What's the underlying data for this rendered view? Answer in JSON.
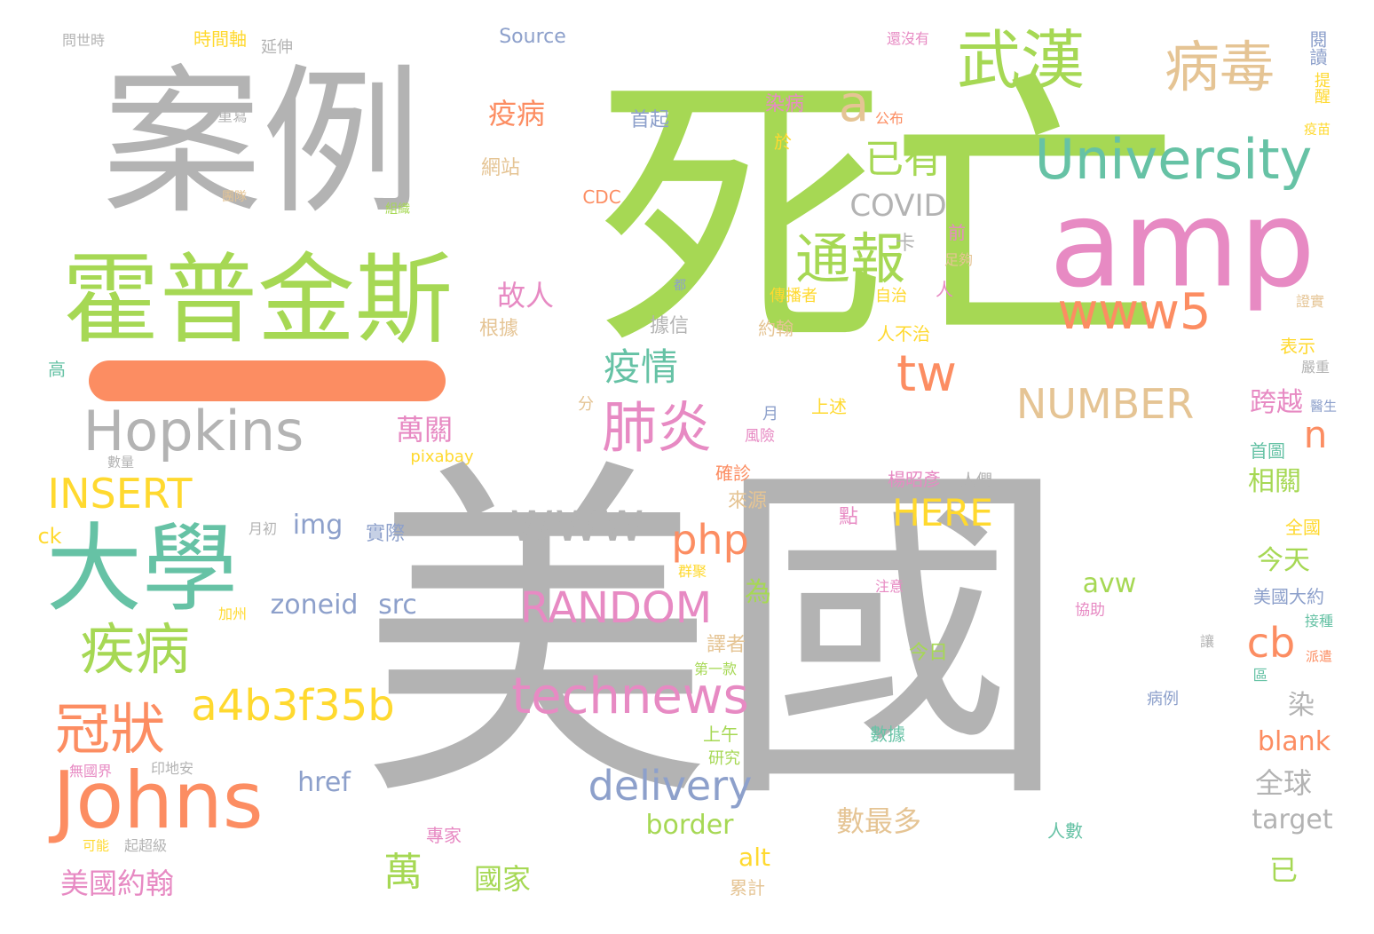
{
  "colors": {
    "gray": "#b3b3b3",
    "green": "#a6d854",
    "orange": "#fc8d62",
    "pink": "#e78ac3",
    "teal": "#66c2a5",
    "blue": "#8da0cb",
    "yellow": "#ffd92f",
    "tan": "#e5c494"
  },
  "bars": [
    {
      "name": "dash-bar",
      "color": "orange"
    }
  ],
  "words": [
    {
      "text": "美國",
      "color": "gray"
    },
    {
      "text": "死亡",
      "color": "green"
    },
    {
      "text": "案例",
      "color": "gray"
    },
    {
      "text": "amp",
      "color": "pink"
    },
    {
      "text": "霍普金斯",
      "color": "green"
    },
    {
      "text": "大學",
      "color": "teal"
    },
    {
      "text": "Johns",
      "color": "orange"
    },
    {
      "text": "University",
      "color": "teal"
    },
    {
      "text": "武漢",
      "color": "green"
    },
    {
      "text": "病毒",
      "color": "tan"
    },
    {
      "text": "Hopkins",
      "color": "gray"
    },
    {
      "text": "www5",
      "color": "orange"
    },
    {
      "text": "technews",
      "color": "pink"
    },
    {
      "text": "www",
      "color": "gray"
    },
    {
      "text": "通報",
      "color": "green"
    },
    {
      "text": "疾病",
      "color": "green"
    },
    {
      "text": "冠狀",
      "color": "orange"
    },
    {
      "text": "a4b3f35b",
      "color": "yellow"
    },
    {
      "text": "肺炎",
      "color": "pink"
    },
    {
      "text": "delivery",
      "color": "blue"
    },
    {
      "text": "RANDOM",
      "color": "pink"
    },
    {
      "text": "INSERT",
      "color": "yellow"
    },
    {
      "text": "NUMBER",
      "color": "tan"
    },
    {
      "text": "php",
      "color": "orange"
    },
    {
      "text": "HERE",
      "color": "yellow"
    },
    {
      "text": "已有",
      "color": "green"
    },
    {
      "text": "tw",
      "color": "orange"
    },
    {
      "text": "疫情",
      "color": "teal"
    },
    {
      "text": "a",
      "color": "tan"
    },
    {
      "text": "n",
      "color": "orange"
    },
    {
      "text": "cb",
      "color": "orange"
    },
    {
      "text": "COVID",
      "color": "gray"
    },
    {
      "text": "萬",
      "color": "green"
    },
    {
      "text": "數最多",
      "color": "tan"
    },
    {
      "text": "故人",
      "color": "pink"
    },
    {
      "text": "疫病",
      "color": "orange"
    },
    {
      "text": "萬關",
      "color": "pink"
    },
    {
      "text": "全球",
      "color": "gray"
    },
    {
      "text": "美國約翰",
      "color": "pink"
    },
    {
      "text": "國家",
      "color": "green"
    },
    {
      "text": "zoneid",
      "color": "blue"
    },
    {
      "text": "src",
      "color": "blue"
    },
    {
      "text": "border",
      "color": "green"
    },
    {
      "text": "target",
      "color": "gray"
    },
    {
      "text": "blank",
      "color": "orange"
    },
    {
      "text": "跨越",
      "color": "pink"
    },
    {
      "text": "相關",
      "color": "green"
    },
    {
      "text": "今天",
      "color": "green"
    },
    {
      "text": "avw",
      "color": "green"
    },
    {
      "text": "img",
      "color": "blue"
    },
    {
      "text": "href",
      "color": "blue"
    },
    {
      "text": "alt",
      "color": "yellow"
    },
    {
      "text": "為",
      "color": "green"
    },
    {
      "text": "染",
      "color": "gray"
    },
    {
      "text": "已",
      "color": "green"
    },
    {
      "text": "ck",
      "color": "yellow"
    },
    {
      "text": "Source",
      "color": "blue"
    },
    {
      "text": "時間軸",
      "color": "yellow"
    },
    {
      "text": "問世時",
      "color": "gray"
    },
    {
      "text": "延伸",
      "color": "gray"
    },
    {
      "text": "重寫",
      "color": "gray"
    },
    {
      "text": "網站",
      "color": "tan"
    },
    {
      "text": "團隊",
      "color": "tan"
    },
    {
      "text": "組織",
      "color": "green"
    },
    {
      "text": "高",
      "color": "teal"
    },
    {
      "text": "根據",
      "color": "tan"
    },
    {
      "text": "據信",
      "color": "gray"
    },
    {
      "text": "卡",
      "color": "gray"
    },
    {
      "text": "首起",
      "color": "blue"
    },
    {
      "text": "CDC",
      "color": "orange"
    },
    {
      "text": "染病",
      "color": "pink"
    },
    {
      "text": "於",
      "color": "yellow"
    },
    {
      "text": "都",
      "color": "blue"
    },
    {
      "text": "傳播者",
      "color": "yellow"
    },
    {
      "text": "約翰",
      "color": "tan"
    },
    {
      "text": "前",
      "color": "pink"
    },
    {
      "text": "足夠",
      "color": "tan"
    },
    {
      "text": "自治",
      "color": "yellow"
    },
    {
      "text": "人",
      "color": "pink"
    },
    {
      "text": "人不治",
      "color": "yellow"
    },
    {
      "text": "分",
      "color": "tan"
    },
    {
      "text": "月",
      "color": "blue"
    },
    {
      "text": "風險",
      "color": "pink"
    },
    {
      "text": "上述",
      "color": "yellow"
    },
    {
      "text": "pixabay",
      "color": "yellow"
    },
    {
      "text": "數量",
      "color": "gray"
    },
    {
      "text": "月初",
      "color": "gray"
    },
    {
      "text": "實際",
      "color": "blue"
    },
    {
      "text": "確診",
      "color": "orange"
    },
    {
      "text": "來源",
      "color": "tan"
    },
    {
      "text": "楊昭彥",
      "color": "pink"
    },
    {
      "text": "人們",
      "color": "gray"
    },
    {
      "text": "點",
      "color": "pink"
    },
    {
      "text": "群聚",
      "color": "yellow"
    },
    {
      "text": "加州",
      "color": "yellow"
    },
    {
      "text": "注意",
      "color": "pink"
    },
    {
      "text": "今日",
      "color": "green"
    },
    {
      "text": "譯者",
      "color": "tan"
    },
    {
      "text": "第一款",
      "color": "green"
    },
    {
      "text": "讓",
      "color": "gray"
    },
    {
      "text": "上午",
      "color": "green"
    },
    {
      "text": "研究",
      "color": "green"
    },
    {
      "text": "無國界",
      "color": "pink"
    },
    {
      "text": "印地安",
      "color": "gray"
    },
    {
      "text": "可能",
      "color": "yellow"
    },
    {
      "text": "起超級",
      "color": "gray"
    },
    {
      "text": "專家",
      "color": "pink"
    },
    {
      "text": "累計",
      "color": "tan"
    },
    {
      "text": "數據",
      "color": "teal"
    },
    {
      "text": "人數",
      "color": "teal"
    },
    {
      "text": "還沒有",
      "color": "pink"
    },
    {
      "text": "公布",
      "color": "orange"
    },
    {
      "text": "閱讀",
      "color": "blue"
    },
    {
      "text": "提醒",
      "color": "yellow"
    },
    {
      "text": "疫苗",
      "color": "yellow"
    },
    {
      "text": "證實",
      "color": "tan"
    },
    {
      "text": "表示",
      "color": "yellow"
    },
    {
      "text": "嚴重",
      "color": "gray"
    },
    {
      "text": "醫生",
      "color": "blue"
    },
    {
      "text": "首圖",
      "color": "teal"
    },
    {
      "text": "全國",
      "color": "yellow"
    },
    {
      "text": "美國大約",
      "color": "blue"
    },
    {
      "text": "協助",
      "color": "pink"
    },
    {
      "text": "接種",
      "color": "teal"
    },
    {
      "text": "派遣",
      "color": "orange"
    },
    {
      "text": "區",
      "color": "teal"
    },
    {
      "text": "病例",
      "color": "blue"
    }
  ]
}
